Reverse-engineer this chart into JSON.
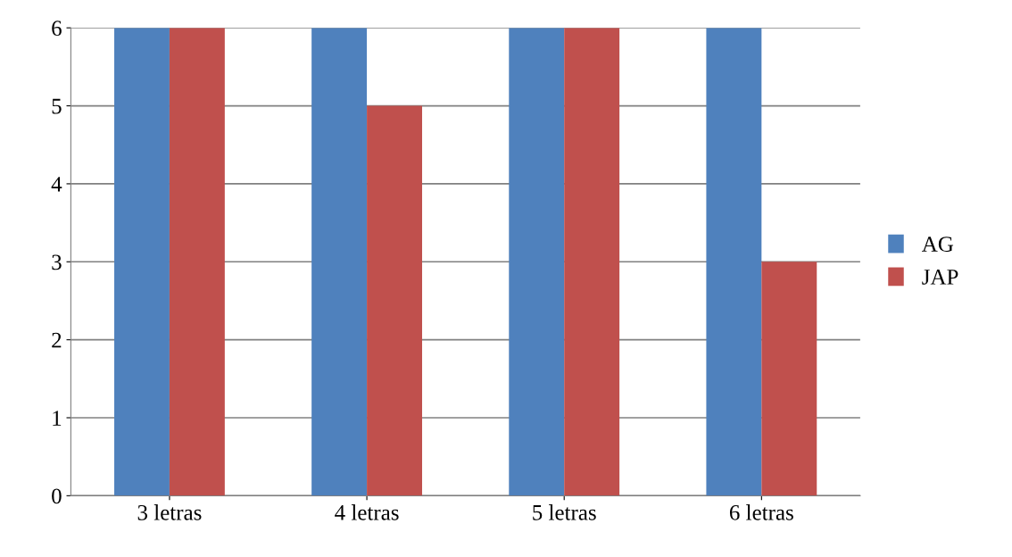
{
  "chart_data": {
    "type": "bar",
    "categories": [
      "3 letras",
      "4 letras",
      "5 letras",
      "6 letras"
    ],
    "series": [
      {
        "name": "AG",
        "color": "#4f81bd",
        "values": [
          6,
          6,
          6,
          6
        ]
      },
      {
        "name": "JAP",
        "color": "#c0504d",
        "values": [
          6,
          5,
          6,
          3
        ]
      }
    ],
    "ylim": [
      0,
      6
    ],
    "yticks": [
      0,
      1,
      2,
      3,
      4,
      5,
      6
    ],
    "grid": "y",
    "legend": "right"
  }
}
